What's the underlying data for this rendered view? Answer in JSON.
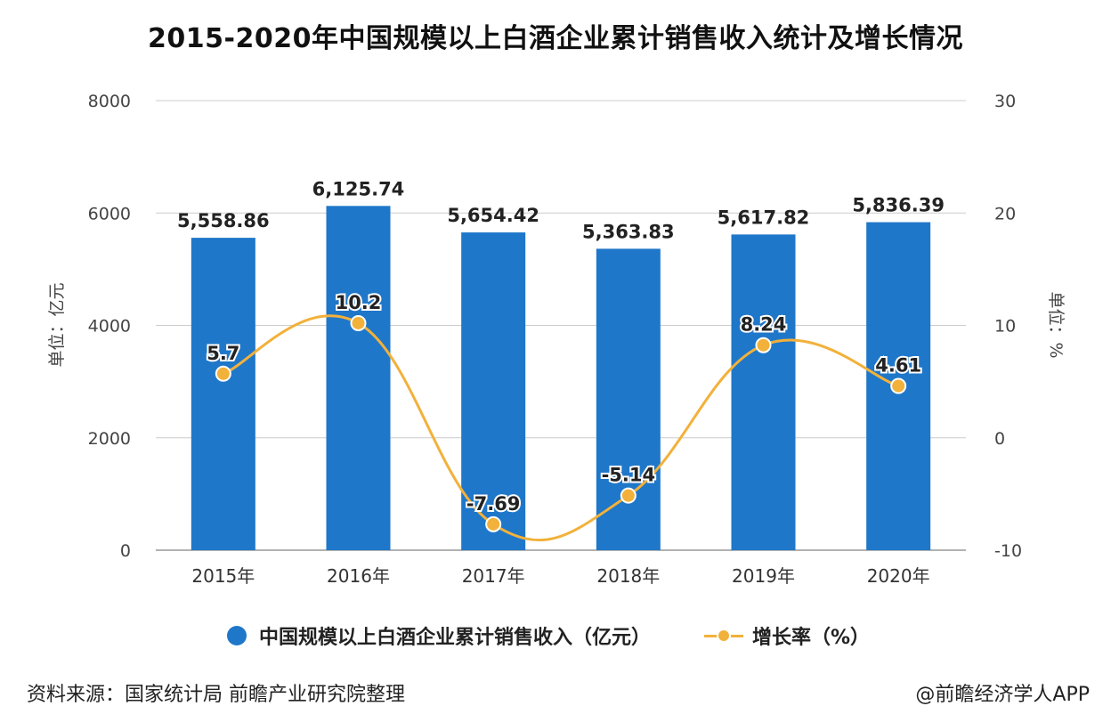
{
  "chart_data": {
    "type": "bar",
    "title": "2015-2020年中国规模以上白酒企业累计销售收入统计及增长情况",
    "categories": [
      "2015年",
      "2016年",
      "2017年",
      "2018年",
      "2019年",
      "2020年"
    ],
    "series": [
      {
        "name": "中国规模以上白酒企业累计销售收入（亿元）",
        "type": "bar",
        "axis": "left",
        "values": [
          5558.86,
          6125.74,
          5654.42,
          5363.83,
          5617.82,
          5836.39
        ],
        "labels": [
          "5,558.86",
          "6,125.74",
          "5,654.42",
          "5,363.83",
          "5,617.82",
          "5,836.39"
        ]
      },
      {
        "name": "增长率（%）",
        "type": "line",
        "axis": "right",
        "values": [
          5.7,
          10.2,
          -7.69,
          -5.14,
          8.24,
          4.61
        ],
        "labels": [
          "5.7",
          "10.2",
          "-7.69",
          "-5.14",
          "8.24",
          "4.61"
        ]
      }
    ],
    "y_left": {
      "label": "单位：亿元",
      "ylim": [
        0,
        8000
      ],
      "ticks": [
        "0",
        "2000",
        "4000",
        "6000",
        "8000"
      ]
    },
    "y_right": {
      "label": "单位：%",
      "ylim": [
        -10,
        30
      ],
      "ticks": [
        "-10",
        "0",
        "10",
        "20",
        "30"
      ]
    },
    "grid": true,
    "legend_position": "bottom",
    "colors": {
      "bar": "#1f77c9",
      "line": "#f2b13a",
      "grid": "#cccccc"
    }
  },
  "legend": {
    "bar_label": "中国规模以上白酒企业累计销售收入（亿元）",
    "line_label": "增长率（%）"
  },
  "footer": {
    "source": "资料来源：国家统计局 前瞻产业研究院整理",
    "credit": "@前瞻经济学人APP"
  }
}
